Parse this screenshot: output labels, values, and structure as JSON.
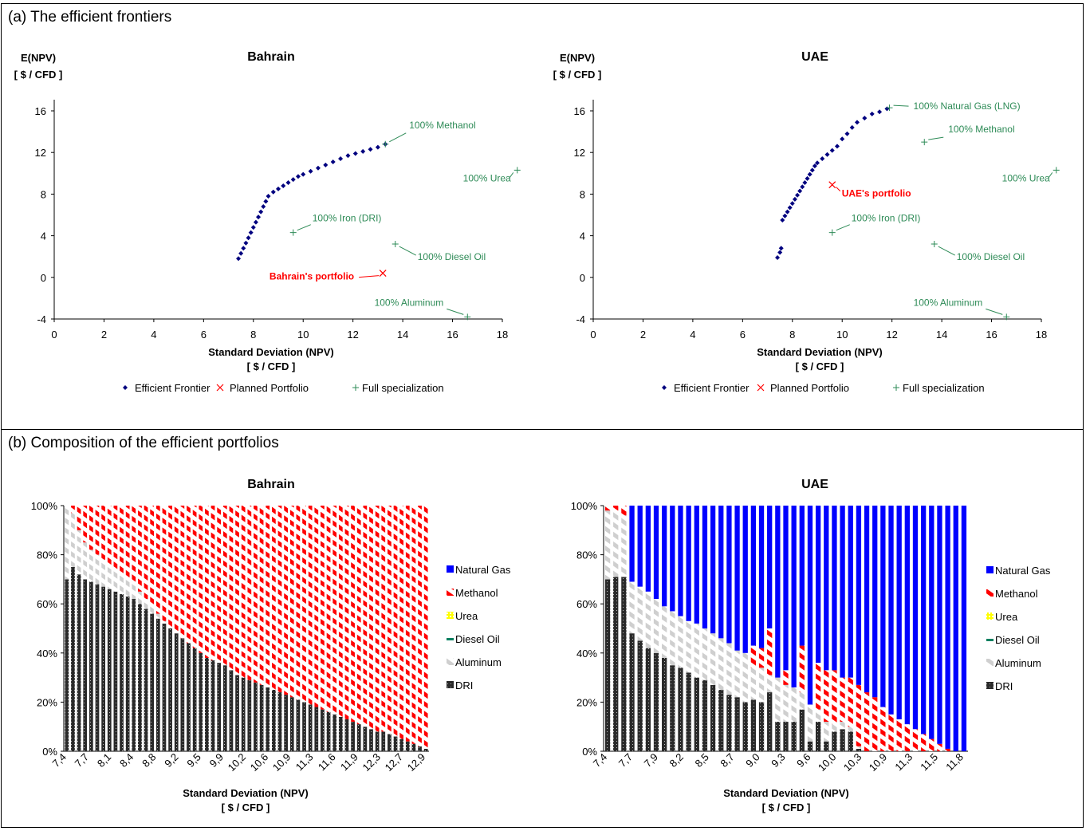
{
  "panels": {
    "a": {
      "title": "(a) The efficient frontiers"
    },
    "b": {
      "title": "(b) Composition of the efficient portfolios"
    }
  },
  "chart_data": [
    {
      "id": "frontier-bahrain",
      "type": "scatter",
      "title": "Bahrain",
      "ylabel": [
        "E(NPV)",
        "[ $ / CFD ]"
      ],
      "xlabel": [
        "Standard Deviation (NPV)",
        "[ $ / CFD ]"
      ],
      "xlim": [
        0,
        18
      ],
      "ylim": [
        -4,
        16
      ],
      "xticks": [
        "0",
        "2",
        "4",
        "6",
        "8",
        "10",
        "12",
        "14",
        "16",
        "18"
      ],
      "yticks": [
        "-4",
        "0",
        "4",
        "8",
        "12",
        "16"
      ],
      "legend": [
        "Efficient Frontier",
        "Planned Portfolio",
        "Full specialization"
      ],
      "frontier": [
        [
          7.4,
          1.8
        ],
        [
          7.5,
          2.3
        ],
        [
          7.6,
          2.8
        ],
        [
          7.7,
          3.3
        ],
        [
          7.8,
          3.8
        ],
        [
          7.9,
          4.3
        ],
        [
          8.0,
          4.8
        ],
        [
          8.1,
          5.3
        ],
        [
          8.2,
          5.8
        ],
        [
          8.3,
          6.3
        ],
        [
          8.4,
          6.8
        ],
        [
          8.5,
          7.3
        ],
        [
          8.6,
          7.8
        ],
        [
          8.8,
          8.2
        ],
        [
          9.0,
          8.5
        ],
        [
          9.2,
          8.8
        ],
        [
          9.4,
          9.1
        ],
        [
          9.6,
          9.4
        ],
        [
          9.8,
          9.7
        ],
        [
          10.0,
          9.9
        ],
        [
          10.3,
          10.2
        ],
        [
          10.6,
          10.5
        ],
        [
          10.9,
          10.8
        ],
        [
          11.2,
          11.1
        ],
        [
          11.5,
          11.4
        ],
        [
          11.8,
          11.7
        ],
        [
          12.1,
          11.9
        ],
        [
          12.4,
          12.1
        ],
        [
          12.7,
          12.3
        ],
        [
          13.0,
          12.5
        ],
        [
          13.3,
          12.8
        ]
      ],
      "planned": {
        "x": 13.2,
        "y": 0.4,
        "label": "Bahrain's portfolio"
      },
      "specialization": [
        {
          "x": 13.3,
          "y": 12.8,
          "label": "100% Methanol"
        },
        {
          "x": 18.6,
          "y": 10.3,
          "label": "100% Urea"
        },
        {
          "x": 9.6,
          "y": 4.3,
          "label": "100% Iron (DRI)"
        },
        {
          "x": 13.7,
          "y": 3.2,
          "label": "100% Diesel Oil"
        },
        {
          "x": 16.6,
          "y": -3.8,
          "label": "100% Aluminum"
        }
      ]
    },
    {
      "id": "frontier-uae",
      "type": "scatter",
      "title": "UAE",
      "ylabel": [
        "E(NPV)",
        "[ $ / CFD ]"
      ],
      "xlabel": [
        "Standard Deviation (NPV)",
        "[ $ / CFD ]"
      ],
      "xlim": [
        0,
        18
      ],
      "ylim": [
        -4,
        16
      ],
      "xticks": [
        "0",
        "2",
        "4",
        "6",
        "8",
        "10",
        "12",
        "14",
        "16",
        "18"
      ],
      "yticks": [
        "-4",
        "0",
        "4",
        "8",
        "12",
        "16"
      ],
      "legend": [
        "Efficient Frontier",
        "Planned Portfolio",
        "Full specialization"
      ],
      "frontier": [
        [
          7.4,
          1.9
        ],
        [
          7.5,
          2.4
        ],
        [
          7.55,
          2.8
        ],
        [
          7.6,
          5.5
        ],
        [
          7.7,
          5.9
        ],
        [
          7.8,
          6.3
        ],
        [
          7.9,
          6.7
        ],
        [
          8.0,
          7.1
        ],
        [
          8.1,
          7.5
        ],
        [
          8.2,
          7.9
        ],
        [
          8.3,
          8.3
        ],
        [
          8.4,
          8.7
        ],
        [
          8.5,
          9.1
        ],
        [
          8.6,
          9.5
        ],
        [
          8.7,
          9.9
        ],
        [
          8.8,
          10.3
        ],
        [
          8.9,
          10.7
        ],
        [
          9.0,
          11.0
        ],
        [
          9.2,
          11.4
        ],
        [
          9.4,
          11.8
        ],
        [
          9.6,
          12.2
        ],
        [
          9.8,
          12.6
        ],
        [
          10.0,
          13.3
        ],
        [
          10.2,
          13.8
        ],
        [
          10.4,
          14.4
        ],
        [
          10.6,
          14.9
        ],
        [
          10.9,
          15.3
        ],
        [
          11.2,
          15.7
        ],
        [
          11.5,
          15.9
        ],
        [
          11.8,
          16.2
        ]
      ],
      "planned": {
        "x": 9.6,
        "y": 8.9,
        "label": "UAE's portfolio"
      },
      "specialization": [
        {
          "x": 11.9,
          "y": 16.3,
          "label": "100% Natural Gas (LNG)"
        },
        {
          "x": 13.3,
          "y": 13.0,
          "label": "100% Methanol"
        },
        {
          "x": 18.6,
          "y": 10.3,
          "label": "100% Urea"
        },
        {
          "x": 9.6,
          "y": 4.3,
          "label": "100% Iron (DRI)"
        },
        {
          "x": 13.7,
          "y": 3.2,
          "label": "100% Diesel Oil"
        },
        {
          "x": 16.6,
          "y": -3.8,
          "label": "100% Aluminum"
        }
      ]
    },
    {
      "id": "composition-bahrain",
      "type": "bar",
      "stacked": true,
      "title": "Bahrain",
      "xlabel": [
        "Standard Deviation (NPV)",
        "[ $ / CFD ]"
      ],
      "yticks": [
        "0%",
        "20%",
        "40%",
        "60%",
        "80%",
        "100%"
      ],
      "xticklabels": [
        "7,4",
        "7,7",
        "8,1",
        "8,4",
        "8,8",
        "9,2",
        "9,5",
        "9,9",
        "10,2",
        "10,6",
        "10,9",
        "11,3",
        "11,6",
        "11,9",
        "12,3",
        "12,7",
        "12,9"
      ],
      "legend": [
        "Natural Gas",
        "Methanol",
        "Urea",
        "Diesel Oil",
        "Aluminum",
        "DRI"
      ],
      "colors": {
        "Natural Gas": "#0000ff",
        "Methanol": "#ff0000",
        "Urea": "#ffff00",
        "Diesel Oil": "#008060",
        "Aluminum": "#c8c8c8",
        "DRI": "#333333"
      },
      "n_bars": 60,
      "dri": [
        70,
        75,
        72,
        70,
        69,
        68,
        67,
        66,
        65,
        64,
        63,
        62,
        60,
        58,
        56,
        54,
        52,
        50,
        48,
        46,
        44,
        42,
        40,
        38,
        37,
        36,
        35,
        33,
        31,
        30,
        29,
        28,
        27,
        26,
        25,
        24,
        23,
        22,
        21,
        20,
        19,
        18,
        17,
        16,
        15,
        14,
        13,
        12,
        11,
        10,
        9,
        8,
        8,
        7,
        6,
        5,
        4,
        3,
        2,
        1
      ],
      "aluminum": [
        30,
        22,
        18,
        15,
        13,
        12,
        11,
        10,
        9,
        8,
        7,
        6,
        5,
        4,
        3,
        2,
        1,
        0,
        0,
        0,
        0,
        0,
        0,
        0,
        0,
        0,
        0,
        0,
        0,
        0,
        0,
        0,
        0,
        0,
        0,
        0,
        0,
        0,
        0,
        0,
        0,
        0,
        0,
        0,
        0,
        0,
        0,
        0,
        0,
        0,
        0,
        0,
        0,
        0,
        0,
        0,
        0,
        0,
        0,
        0
      ]
    },
    {
      "id": "composition-uae",
      "type": "bar",
      "stacked": true,
      "title": "UAE",
      "xlabel": [
        "Standard Deviation (NPV)",
        "[ $ / CFD ]"
      ],
      "yticks": [
        "0%",
        "20%",
        "40%",
        "60%",
        "80%",
        "100%"
      ],
      "xticklabels": [
        "7,4",
        "7,7",
        "7,9",
        "8,2",
        "8,5",
        "8,7",
        "9,0",
        "9,3",
        "9,6",
        "10,0",
        "10,3",
        "10,9",
        "11,3",
        "11,5",
        "11,8"
      ],
      "legend": [
        "Natural Gas",
        "Methanol",
        "Urea",
        "Diesel Oil",
        "Aluminum",
        "DRI"
      ],
      "colors": {
        "Natural Gas": "#0000ff",
        "Methanol": "#ff0000",
        "Urea": "#ffff00",
        "Diesel Oil": "#008060",
        "Aluminum": "#c8c8c8",
        "DRI": "#333333"
      },
      "n_bars": 45,
      "dri": [
        70,
        71,
        71,
        48,
        45,
        42,
        40,
        38,
        35,
        34,
        32,
        30,
        29,
        27,
        25,
        23,
        22,
        20,
        21,
        20,
        24,
        12,
        12,
        12,
        17,
        4,
        12,
        4,
        8,
        9,
        8,
        1,
        0,
        0,
        0,
        0,
        0,
        0,
        0,
        0,
        0,
        0,
        0,
        0,
        0
      ],
      "aluminum": [
        28,
        27,
        25,
        21,
        22,
        23,
        22,
        21,
        22,
        21,
        21,
        22,
        21,
        21,
        21,
        21,
        19,
        20,
        13,
        14,
        7,
        18,
        15,
        14,
        7,
        15,
        5,
        8,
        3,
        3,
        2,
        1,
        0,
        0,
        0,
        0,
        0,
        0,
        0,
        0,
        0,
        0,
        0,
        0,
        0
      ],
      "methanol": [
        2,
        2,
        4,
        0,
        0,
        0,
        0,
        0,
        0,
        0,
        0,
        0,
        0,
        0,
        0,
        0,
        0,
        0,
        9,
        8,
        19,
        0,
        6,
        0,
        19,
        0,
        19,
        21,
        22,
        18,
        20,
        25,
        24,
        22,
        18,
        15,
        13,
        11,
        9,
        7,
        5,
        3,
        1,
        0,
        0
      ]
    }
  ]
}
